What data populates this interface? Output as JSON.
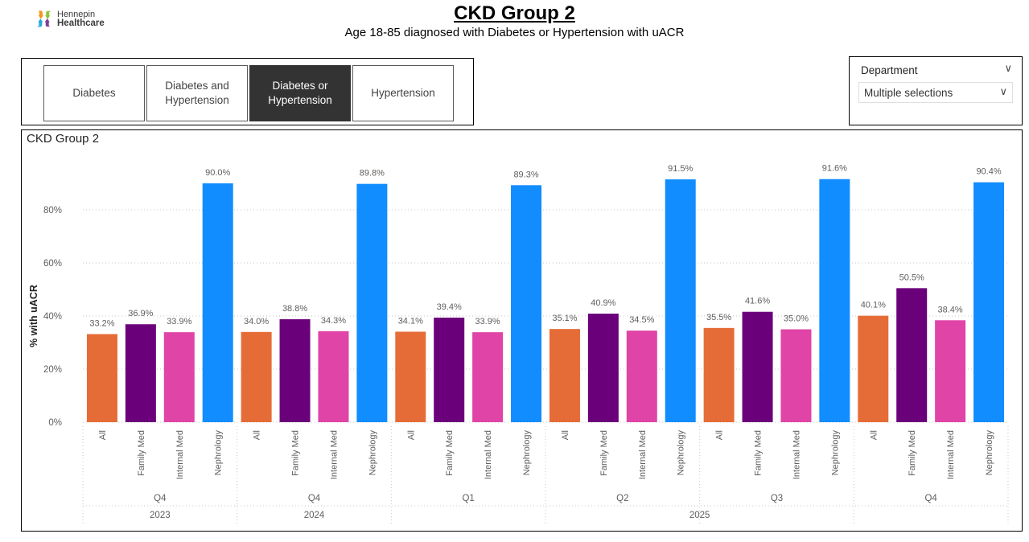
{
  "logo": {
    "line1": "Hennepin",
    "line2": "Healthcare",
    "colors": [
      "#f7941d",
      "#8dc63f",
      "#27aae1",
      "#7f3f98"
    ]
  },
  "header": {
    "title": "CKD Group 2",
    "subtitle": "Age 18-85 diagnosed with Diabetes or Hypertension with uACR"
  },
  "slicer": {
    "tiles": [
      {
        "label": "Diabetes",
        "selected": false
      },
      {
        "label": "Diabetes and\nHypertension",
        "selected": false
      },
      {
        "label": "Diabetes or\nHypertension",
        "selected": true
      },
      {
        "label": "Hypertension",
        "selected": false
      }
    ]
  },
  "department": {
    "label": "Department",
    "value": "Multiple selections"
  },
  "chart_data": {
    "type": "bar",
    "title": "CKD Group 2",
    "ylabel": "% with uACR",
    "xlabel": "",
    "ylim": [
      0,
      100
    ],
    "yticks": [
      0,
      20,
      40,
      60,
      80
    ],
    "ytick_labels": [
      "0%",
      "20%",
      "40%",
      "60%",
      "80%"
    ],
    "categories": [
      "All",
      "Family Med",
      "Internal Med",
      "Nephrology"
    ],
    "series_colors": {
      "All": "#e66c37",
      "Family Med": "#6b007b",
      "Internal Med": "#e044a7",
      "Nephrology": "#118dff"
    },
    "groups": [
      {
        "quarter": "Q4",
        "year": "2023",
        "values": [
          33.2,
          36.9,
          33.9,
          90.0
        ],
        "labels": [
          "33.2%",
          "36.9%",
          "33.9%",
          "90.0%"
        ]
      },
      {
        "quarter": "Q4",
        "year": "2024",
        "values": [
          34.0,
          38.8,
          34.3,
          89.8
        ],
        "labels": [
          "34.0%",
          "38.8%",
          "34.3%",
          "89.8%"
        ]
      },
      {
        "quarter": "Q1",
        "year": "2025",
        "values": [
          34.1,
          39.4,
          33.9,
          89.3
        ],
        "labels": [
          "34.1%",
          "39.4%",
          "33.9%",
          "89.3%"
        ]
      },
      {
        "quarter": "Q2",
        "year": "2025",
        "values": [
          35.1,
          40.9,
          34.5,
          91.5
        ],
        "labels": [
          "35.1%",
          "40.9%",
          "34.5%",
          "91.5%"
        ]
      },
      {
        "quarter": "Q3",
        "year": "2025",
        "values": [
          35.5,
          41.6,
          35.0,
          91.6
        ],
        "labels": [
          "35.5%",
          "41.6%",
          "35.0%",
          "91.6%"
        ]
      },
      {
        "quarter": "Q4",
        "year": "2025",
        "values": [
          40.1,
          50.5,
          38.4,
          90.4
        ],
        "labels": [
          "40.1%",
          "50.5%",
          "38.4%",
          "90.4%"
        ]
      }
    ],
    "years": [
      {
        "label": "2023",
        "groups": 1
      },
      {
        "label": "2024",
        "groups": 1
      },
      {
        "label": "2025",
        "groups": 4
      }
    ]
  }
}
